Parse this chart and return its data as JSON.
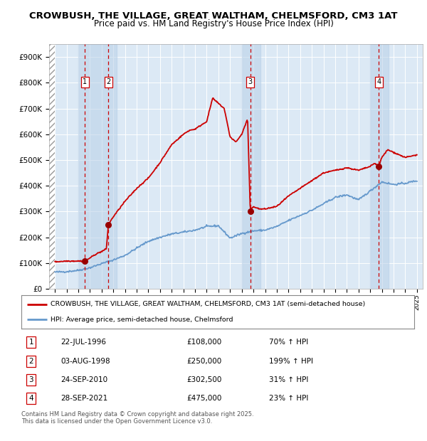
{
  "title_line1": "CROWBUSH, THE VILLAGE, GREAT WALTHAM, CHELMSFORD, CM3 1AT",
  "title_line2": "Price paid vs. HM Land Registry's House Price Index (HPI)",
  "ylim": [
    0,
    950000
  ],
  "yticks": [
    0,
    100000,
    200000,
    300000,
    400000,
    500000,
    600000,
    700000,
    800000,
    900000
  ],
  "ytick_labels": [
    "£0",
    "£100K",
    "£200K",
    "£300K",
    "£400K",
    "£500K",
    "£600K",
    "£700K",
    "£800K",
    "£900K"
  ],
  "plot_bg_color": "#dce9f5",
  "grid_color": "#ffffff",
  "red_line_color": "#cc0000",
  "blue_line_color": "#6699cc",
  "sale_dot_color": "#990000",
  "dashed_line_color": "#cc0000",
  "legend_label_red": "CROWBUSH, THE VILLAGE, GREAT WALTHAM, CHELMSFORD, CM3 1AT (semi-detached house)",
  "legend_label_blue": "HPI: Average price, semi-detached house, Chelmsford",
  "footer_text": "Contains HM Land Registry data © Crown copyright and database right 2025.\nThis data is licensed under the Open Government Licence v3.0.",
  "transactions": [
    {
      "id": 1,
      "date": "22-JUL-1996",
      "year": 1996.55,
      "price": 108000,
      "hpi_pct": "70%",
      "arrow": "↑"
    },
    {
      "id": 2,
      "date": "03-AUG-1998",
      "year": 1998.58,
      "price": 250000,
      "hpi_pct": "199%",
      "arrow": "↑"
    },
    {
      "id": 3,
      "date": "24-SEP-2010",
      "year": 2010.73,
      "price": 302500,
      "hpi_pct": "31%",
      "arrow": "↑"
    },
    {
      "id": 4,
      "date": "28-SEP-2021",
      "year": 2021.73,
      "price": 475000,
      "hpi_pct": "23%",
      "arrow": "↑"
    }
  ],
  "xlim_start": 1993.5,
  "xlim_end": 2025.5,
  "hpi_keypoints_x": [
    1994,
    1995,
    1996,
    1997,
    1998,
    1999,
    2000,
    2001,
    2002,
    2003,
    2004,
    2005,
    2006,
    2007,
    2008,
    2009,
    2010,
    2011,
    2012,
    2013,
    2014,
    2015,
    2016,
    2017,
    2018,
    2019,
    2020,
    2021,
    2022,
    2023,
    2024,
    2025
  ],
  "hpi_keypoints_y": [
    65000,
    67000,
    72000,
    82000,
    98000,
    112000,
    130000,
    158000,
    185000,
    200000,
    213000,
    220000,
    228000,
    242000,
    245000,
    197000,
    215000,
    225000,
    228000,
    242000,
    265000,
    285000,
    305000,
    330000,
    355000,
    365000,
    345000,
    380000,
    415000,
    405000,
    410000,
    420000
  ],
  "red_keypoints_x": [
    1994,
    1995,
    1996.0,
    1996.55,
    1997.0,
    1997.5,
    1998.0,
    1998.4,
    1998.58,
    1999,
    2000,
    2001,
    2002,
    2003,
    2004,
    2005,
    2005.5,
    2006,
    2007,
    2007.5,
    2008,
    2008.5,
    2009,
    2009.5,
    2010.0,
    2010.5,
    2010.73,
    2010.8,
    2011,
    2011.5,
    2012,
    2013,
    2014,
    2015,
    2016,
    2017,
    2018,
    2019,
    2020,
    2021.0,
    2021.4,
    2021.73,
    2022,
    2022.5,
    2023,
    2023.5,
    2024,
    2024.5,
    2025
  ],
  "red_keypoints_y": [
    105000,
    108000,
    108000,
    108000,
    120000,
    135000,
    145000,
    155000,
    250000,
    280000,
    340000,
    390000,
    430000,
    490000,
    560000,
    600000,
    615000,
    620000,
    650000,
    740000,
    720000,
    700000,
    590000,
    570000,
    600000,
    660000,
    302500,
    308000,
    320000,
    310000,
    310000,
    320000,
    360000,
    390000,
    420000,
    450000,
    460000,
    470000,
    460000,
    475000,
    488000,
    475000,
    510000,
    540000,
    530000,
    520000,
    510000,
    515000,
    520000
  ]
}
